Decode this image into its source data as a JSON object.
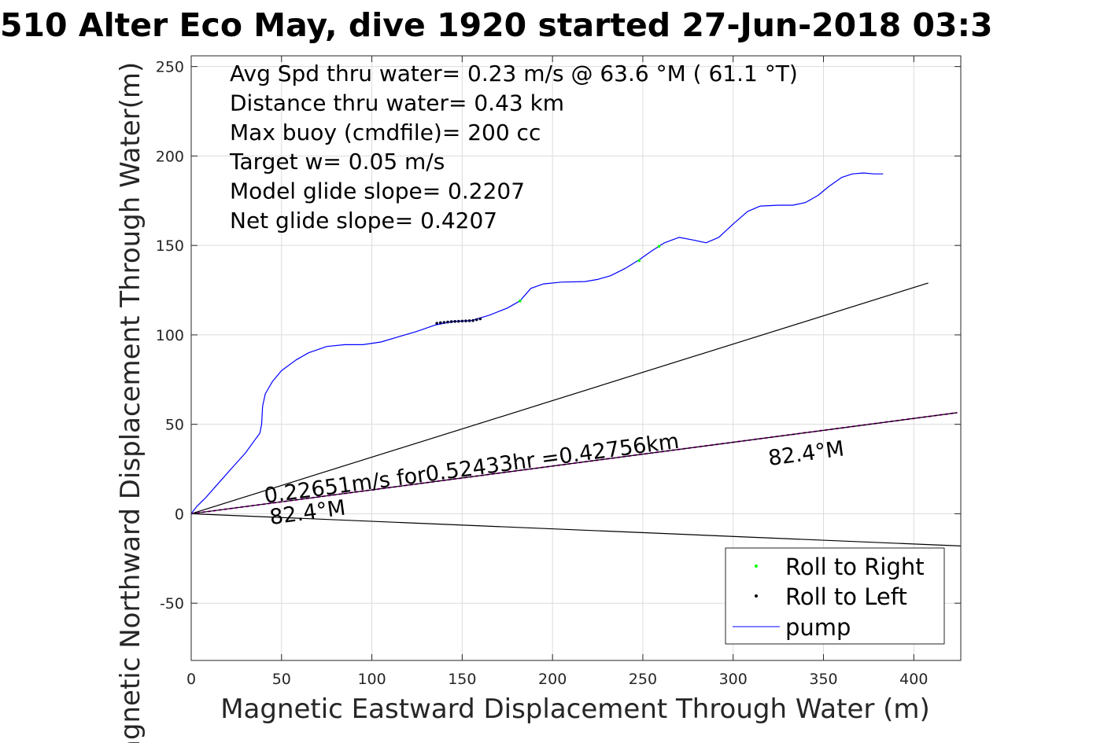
{
  "chart_data": {
    "type": "line",
    "title": "510 Alter Eco May, dive 1920 started 27-Jun-2018 03:3",
    "xlabel": "Magnetic Eastward Displacement Through Water (m)",
    "ylabel": "Magnetic Northward Displacement Through Water(m)",
    "xlim": [
      0,
      426
    ],
    "ylim": [
      -82,
      256
    ],
    "xticks": [
      0,
      50,
      100,
      150,
      200,
      250,
      300,
      350,
      400
    ],
    "yticks": [
      -50,
      0,
      50,
      100,
      150,
      200,
      250
    ],
    "grid": true,
    "info_lines": [
      "Avg Spd thru water=  0.23 m/s @  63.6 °M ( 61.1 °T)",
      "Distance thru water=  0.43 km",
      "Max buoy (cmdfile)= 200 cc",
      "Target w= 0.05 m/s",
      "Model glide slope= 0.2207",
      "Net glide slope= 0.4207"
    ],
    "legend": {
      "placement": "bottom-right",
      "entries": [
        {
          "label": "Roll to Right",
          "color": "#00ff00",
          "marker": "dot"
        },
        {
          "label": "Roll to Left",
          "color": "#000000",
          "marker": "dot"
        },
        {
          "label": "pump",
          "color": "#0000ff",
          "marker": "line"
        }
      ]
    },
    "series": [
      {
        "name": "pump",
        "color": "#0000ff",
        "points": [
          [
            0,
            0
          ],
          [
            3,
            4
          ],
          [
            8,
            9
          ],
          [
            15,
            17
          ],
          [
            22,
            25
          ],
          [
            30,
            34
          ],
          [
            35,
            41
          ],
          [
            38,
            45
          ],
          [
            39,
            50
          ],
          [
            39.5,
            60
          ],
          [
            41,
            67
          ],
          [
            45,
            74
          ],
          [
            50,
            80
          ],
          [
            58,
            86
          ],
          [
            65,
            90
          ],
          [
            75,
            93.5
          ],
          [
            85,
            94.5
          ],
          [
            95,
            94.5
          ],
          [
            105,
            96
          ],
          [
            115,
            99
          ],
          [
            125,
            102
          ],
          [
            135,
            105.5
          ],
          [
            145,
            107.5
          ],
          [
            155,
            108
          ],
          [
            165,
            111
          ],
          [
            175,
            115
          ],
          [
            182,
            119
          ],
          [
            188,
            126
          ],
          [
            195,
            128.5
          ],
          [
            205,
            129.5
          ],
          [
            218,
            129.8
          ],
          [
            225,
            131
          ],
          [
            232,
            133
          ],
          [
            240,
            137
          ],
          [
            248,
            142
          ],
          [
            255,
            147
          ],
          [
            262,
            151.5
          ],
          [
            270,
            154.5
          ],
          [
            278,
            153
          ],
          [
            285,
            151.5
          ],
          [
            292,
            154.5
          ],
          [
            300,
            162
          ],
          [
            308,
            169
          ],
          [
            315,
            172
          ],
          [
            325,
            172.5
          ],
          [
            333,
            172.5
          ],
          [
            340,
            174
          ],
          [
            347,
            178
          ],
          [
            353,
            183
          ],
          [
            360,
            188
          ],
          [
            366,
            190
          ],
          [
            372,
            190.5
          ],
          [
            378,
            190
          ],
          [
            383,
            190
          ]
        ]
      },
      {
        "name": "",
        "color": "#000000",
        "points": [
          [
            0,
            0
          ],
          [
            408,
            129
          ]
        ]
      },
      {
        "name": "",
        "color": "#000000",
        "points": [
          [
            0,
            0
          ],
          [
            426,
            -18
          ]
        ]
      },
      {
        "name": "",
        "color": "#ff00ff",
        "dashed": true,
        "points": [
          [
            0,
            0
          ],
          [
            424,
            56.5
          ]
        ]
      },
      {
        "name": "",
        "color": "#000000",
        "points": [
          [
            0,
            0
          ],
          [
            424,
            56.5
          ]
        ]
      }
    ],
    "roll_left_points": [
      [
        136,
        106.5
      ],
      [
        138,
        106.8
      ],
      [
        140,
        107
      ],
      [
        142,
        107.2
      ],
      [
        144,
        107.4
      ],
      [
        146,
        107.5
      ],
      [
        148,
        107.6
      ],
      [
        150,
        107.7
      ],
      [
        152,
        107.8
      ],
      [
        154,
        107.9
      ],
      [
        156,
        108
      ],
      [
        158,
        108.5
      ],
      [
        160,
        109
      ]
    ],
    "roll_right_points": [
      [
        182,
        119
      ],
      [
        248,
        141.5
      ],
      [
        259,
        149.5
      ]
    ],
    "annotations": [
      {
        "text": "0.22651m/s for0.52433hr =0.42756km",
        "x": 41,
        "y": 6,
        "angle_deg": -7.6
      },
      {
        "text": "82.4°M",
        "x": 44,
        "y": -6,
        "angle_deg": -7.6
      },
      {
        "text": "82.4°M",
        "x": 320,
        "y": 27,
        "angle_deg": -7.6
      }
    ]
  }
}
